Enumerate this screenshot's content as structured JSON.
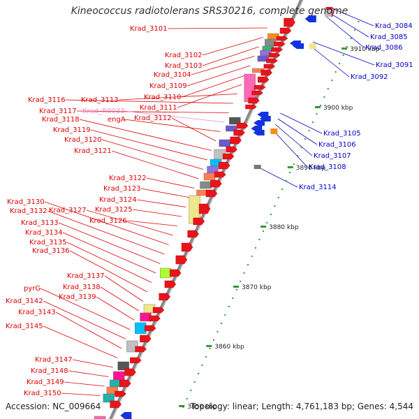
{
  "title": "Kineococcus radiotolerans SRS30216, complete genome",
  "footer": {
    "accession": "Accession: NC_009664",
    "summary": "Topology: linear; Length: 4,761,183 bp; Genes: 4,544"
  },
  "scale": {
    "ticks": [
      {
        "label": "3910 kbp"
      },
      {
        "label": "3900 kbp"
      },
      {
        "label": "3890 kbp"
      },
      {
        "label": "3880 kbp"
      },
      {
        "label": "3870 kbp"
      },
      {
        "label": "3860 kbp"
      },
      {
        "label": "3850 kbp"
      }
    ]
  },
  "colors": {
    "forward_gene": "#e8141c",
    "reverse_gene": "#1433e0",
    "label_red": "#dd0000",
    "label_blue": "#0000cc",
    "label_pink": "#ee88cc",
    "backbone": "#888888"
  },
  "labels_left": [
    "Krad_3101",
    "Krad_3102",
    "Krad_3103",
    "Krad_3104",
    "Krad_3109",
    "Krad_3110",
    "Krad_3111",
    "Krad_3113",
    "Krad_3116",
    "Krad_3117",
    "Krad_R0033",
    "engA",
    "Krad_3112",
    "Krad_3118",
    "Krad_3119",
    "Krad_3120",
    "Krad_3121",
    "Krad_3122",
    "Krad_3123",
    "Krad_3124",
    "Krad_3125",
    "Krad_3126",
    "Krad_3127",
    "Krad_3130",
    "Krad_3132",
    "Krad_3133",
    "Krad_3134",
    "Krad_3135",
    "Krad_3136",
    "Krad_3137",
    "Krad_3138",
    "Krad_3139",
    "pyrG",
    "Krad_3142",
    "Krad_3143",
    "Krad_3145",
    "Krad_3147",
    "Krad_3148",
    "Krad_3149",
    "Krad_3150"
  ],
  "labels_right": [
    "Krad_3084",
    "Krad_3085",
    "Krad_3086",
    "Krad_3091",
    "Krad_3092",
    "Krad_3105",
    "Krad_3106",
    "Krad_3107",
    "Krad_3108",
    "Krad_3114"
  ]
}
